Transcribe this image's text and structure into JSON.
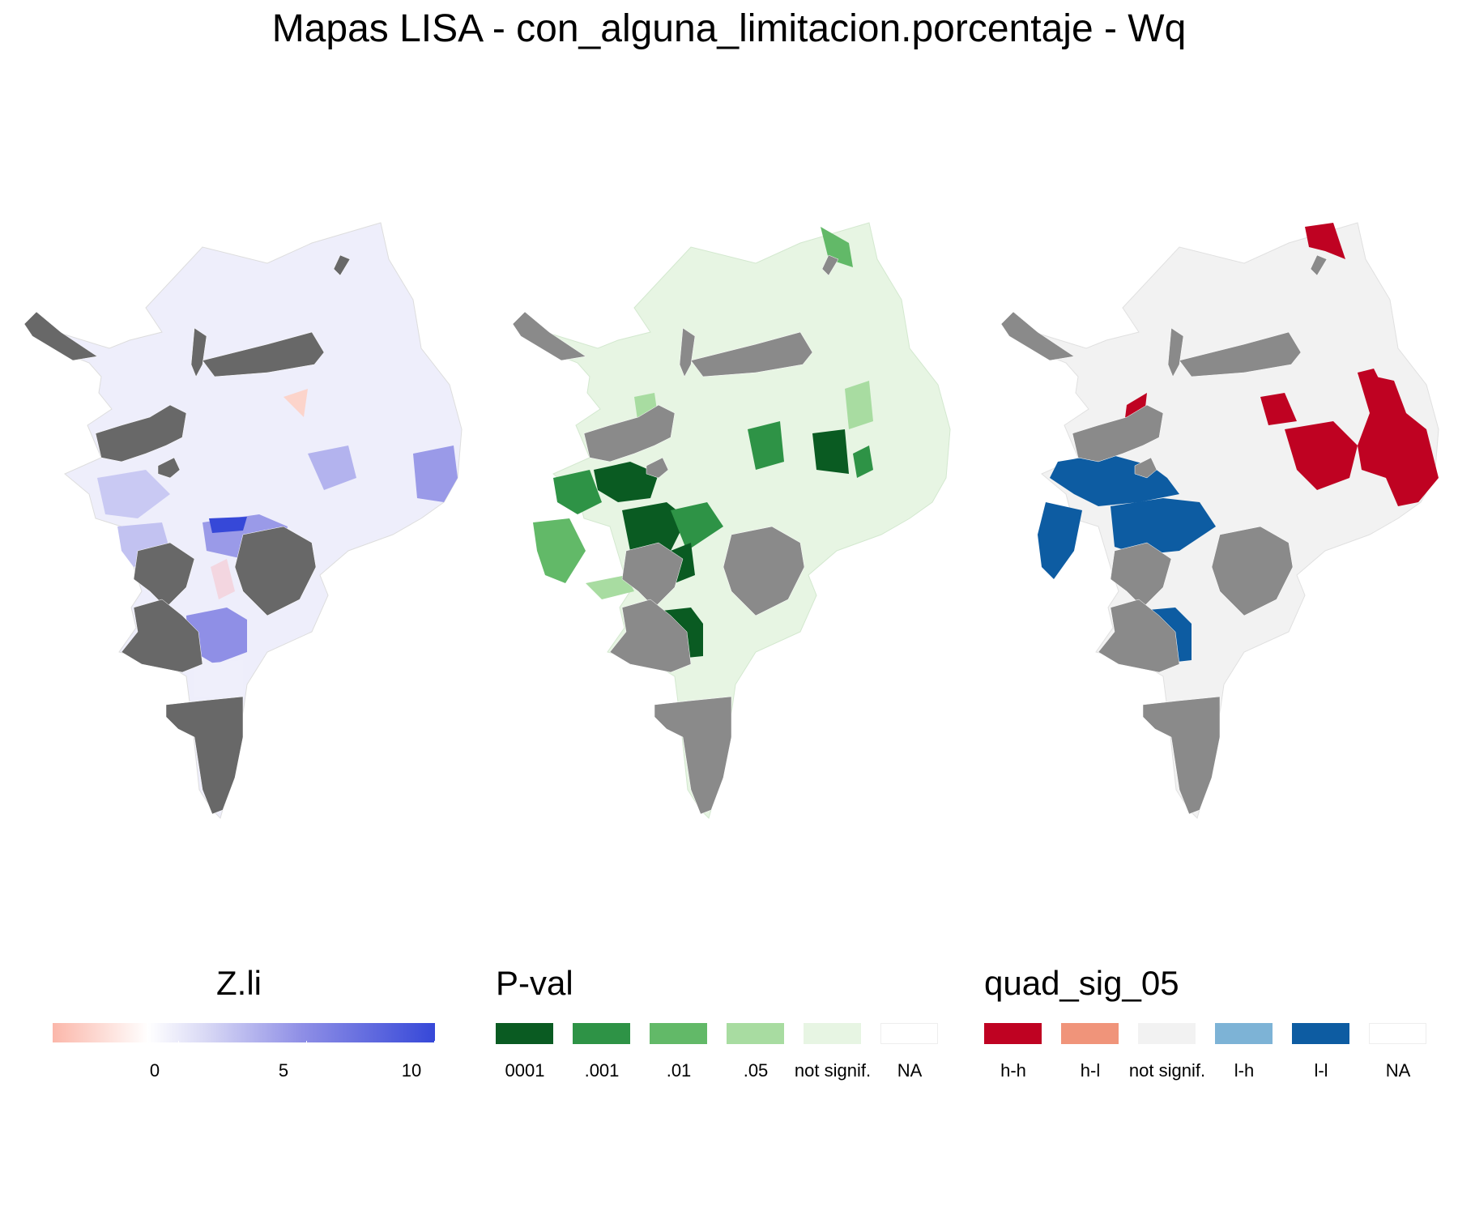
{
  "title": "Mapas LISA - con_alguna_limitacion.porcentaje - Wq",
  "colors": {
    "na_gray": "#686868",
    "zli_gradient": [
      "#fbb7aa",
      "#ffffff",
      "#d9d9f5",
      "#8f8fe6",
      "#3648d8"
    ],
    "pval": [
      "#0a5b22",
      "#2e9346",
      "#62b968",
      "#a8dca1",
      "#e7f5e3",
      "#ffffff"
    ],
    "quad": [
      "#bf0222",
      "#f0947a",
      "#f2f2f2",
      "#7db3d6",
      "#0d5ca2",
      "#ffffff"
    ]
  },
  "legends": {
    "zli": {
      "title": "Z.li",
      "ticks": [
        "0",
        "5",
        "10"
      ]
    },
    "pval": {
      "title": "P-val",
      "items": [
        "0001",
        ".001",
        ".01",
        ".05",
        "not signif.",
        "NA"
      ]
    },
    "quad": {
      "title": "quad_sig_05",
      "items": [
        "h-h",
        "h-l",
        "not signif.",
        "l-h",
        "l-l",
        "NA"
      ]
    }
  },
  "maps": [
    {
      "name": "zli-map",
      "variable": "Z.li",
      "scheme": "diverging red-white-blue"
    },
    {
      "name": "pval-map",
      "variable": "P-val",
      "scheme": "greens"
    },
    {
      "name": "quad-map",
      "variable": "quad_sig_05",
      "scheme": "lisa clusters"
    }
  ]
}
